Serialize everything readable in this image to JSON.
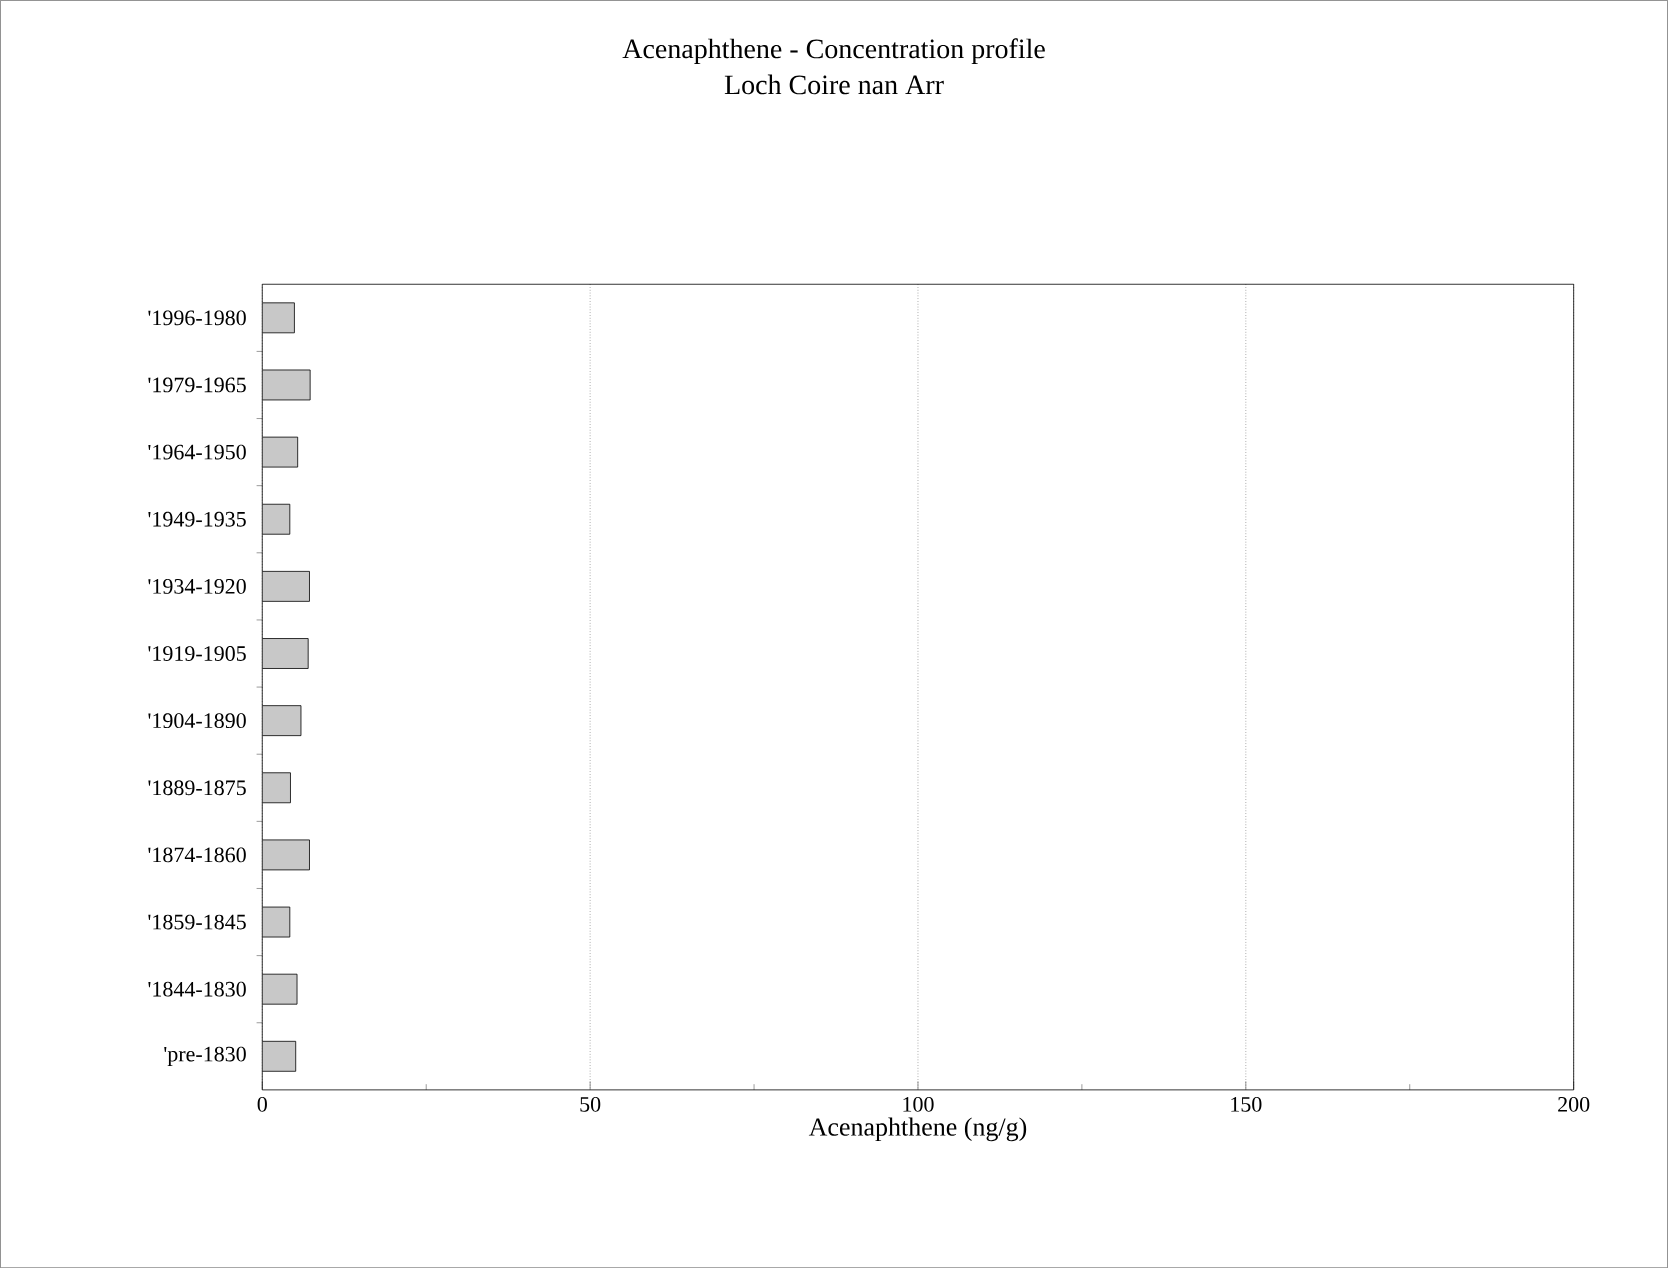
{
  "chart_data": {
    "type": "bar",
    "orientation": "horizontal",
    "title": "Acenaphthene - Concentration profile",
    "subtitle": "Loch Coire nan Arr",
    "xlabel": "Acenaphthene (ng/g)",
    "categories": [
      "'1996-1980",
      "'1979-1965",
      "'1964-1950",
      "'1949-1935",
      "'1934-1920",
      "'1919-1905",
      "'1904-1890",
      "'1889-1875",
      "'1874-1860",
      "'1859-1845",
      "'1844-1830",
      "'pre-1830"
    ],
    "values": [
      4.9,
      7.3,
      5.4,
      4.2,
      7.2,
      7.0,
      5.9,
      4.3,
      7.2,
      4.2,
      5.3,
      5.1
    ],
    "color": "#c8c8c8",
    "xlim": [
      0,
      200
    ],
    "xticks": [
      0,
      50,
      100,
      150,
      200
    ],
    "grid": "x"
  }
}
